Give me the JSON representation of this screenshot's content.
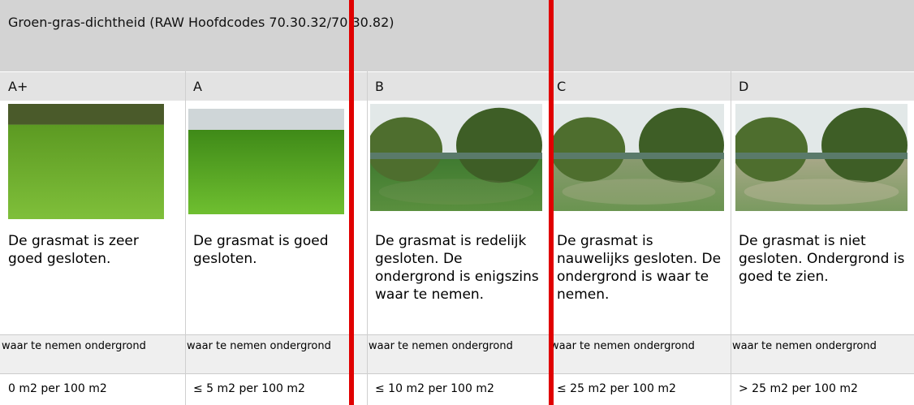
{
  "header": {
    "title": "Groen-gras-dichtheid (RAW Hoofdcodes 70.30.32/70.30.82)"
  },
  "columns": [
    {
      "grade": "A+",
      "description": "De grasmat is zeer goed gesloten.",
      "label": "waar te nemen ondergrond",
      "value": "0 m2 per 100 m2"
    },
    {
      "grade": "A",
      "description": "De grasmat is goed gesloten.",
      "label": "waar te nemen ondergrond",
      "value": "≤ 5 m2 per 100 m2"
    },
    {
      "grade": "B",
      "description": "De grasmat is redelijk gesloten. De ondergrond is enigszins waar te nemen.",
      "label": "waar te nemen ondergrond",
      "value": "≤ 10 m2 per 100 m2"
    },
    {
      "grade": "C",
      "description": "De grasmat is nauwelijks gesloten. De ondergrond is waar te nemen.",
      "label": "waar te nemen ondergrond",
      "value": "≤ 25 m2 per 100 m2"
    },
    {
      "grade": "D",
      "description": "De grasmat is niet gesloten. Ondergrond is goed te zien.",
      "label": "waar te nemen ondergrond",
      "value": "> 25 m2 per 100 m2"
    }
  ]
}
